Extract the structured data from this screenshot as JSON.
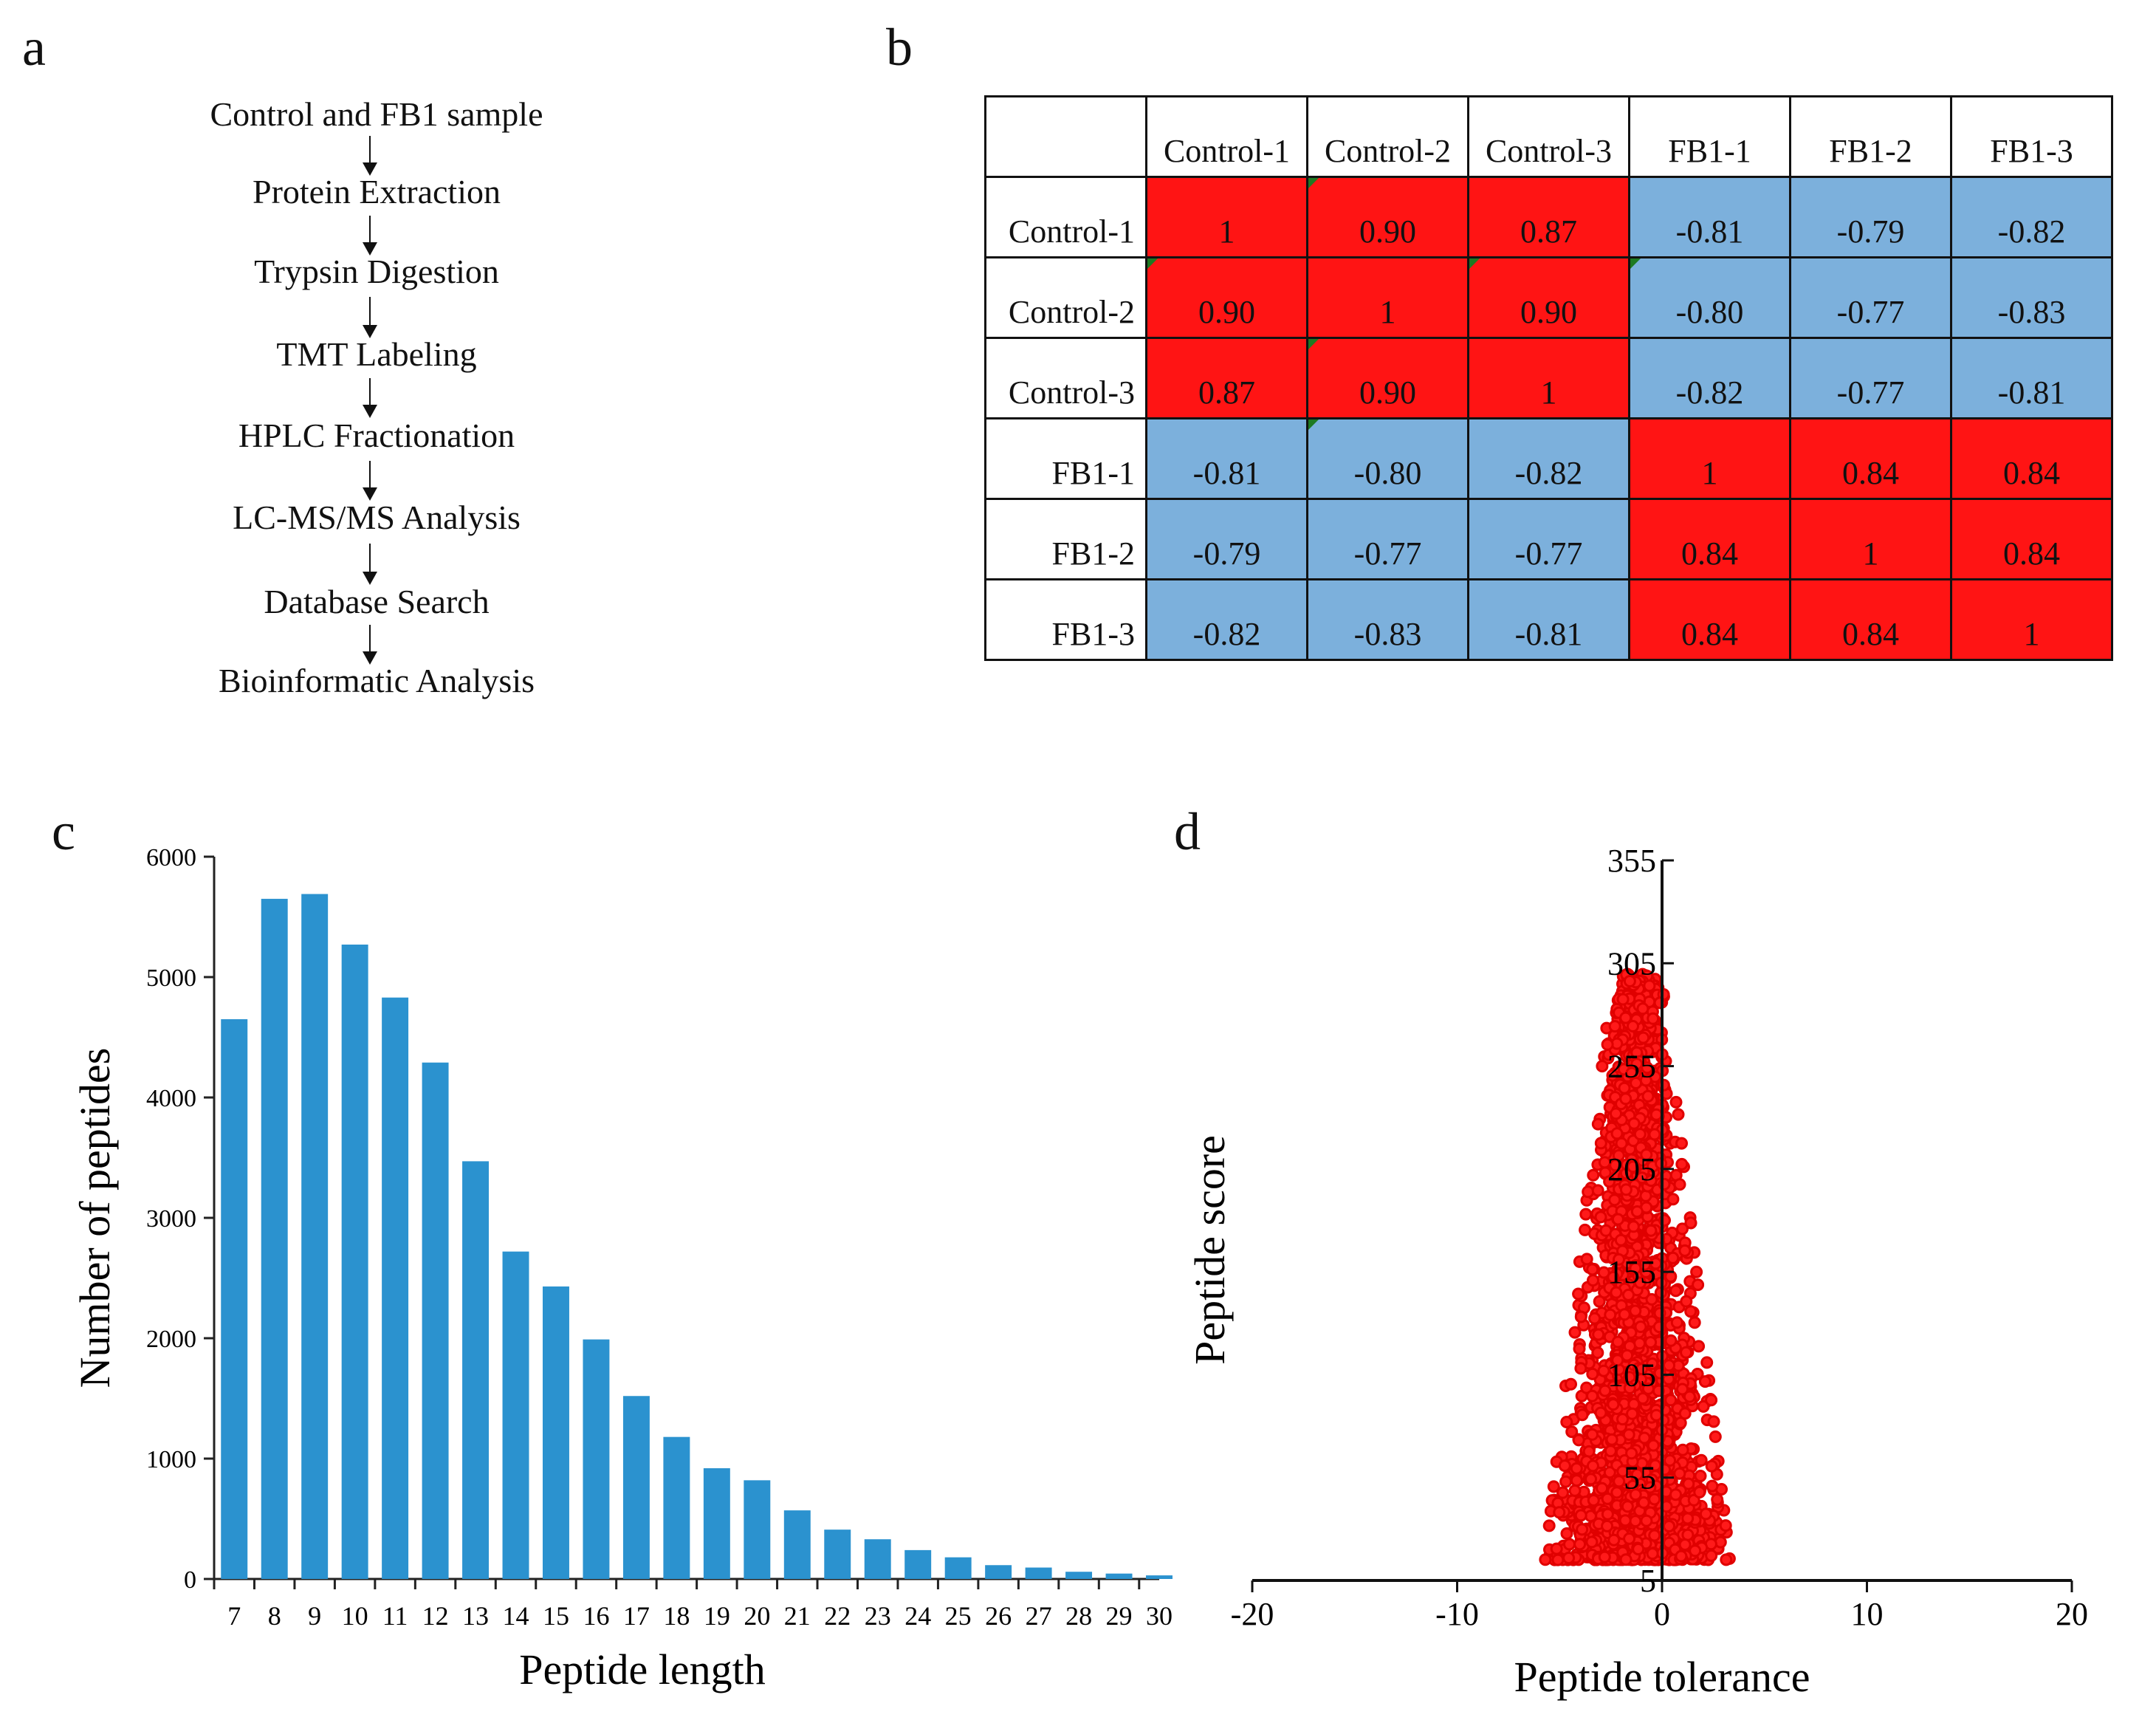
{
  "panels": {
    "a": "a",
    "b": "b",
    "c": "c",
    "d": "d"
  },
  "workflow": {
    "steps": [
      "Control and FB1 sample",
      "Protein Extraction",
      "Trypsin Digestion",
      "TMT Labeling",
      "HPLC Fractionation",
      "LC-MS/MS Analysis",
      "Database Search",
      "Bioinformatic Analysis"
    ]
  },
  "correlation": {
    "columns": [
      "Control-1",
      "Control-2",
      "Control-3",
      "FB1-1",
      "FB1-2",
      "FB1-3"
    ],
    "rows": [
      {
        "label": "Control-1",
        "values": [
          "1",
          "0.90",
          "0.87",
          "-0.81",
          "-0.79",
          "-0.82"
        ]
      },
      {
        "label": "Control-2",
        "values": [
          "0.90",
          "1",
          "0.90",
          "-0.80",
          "-0.77",
          "-0.83"
        ]
      },
      {
        "label": "Control-3",
        "values": [
          "0.87",
          "0.90",
          "1",
          "-0.82",
          "-0.77",
          "-0.81"
        ]
      },
      {
        "label": "FB1-1",
        "values": [
          "-0.81",
          "-0.80",
          "-0.82",
          "1",
          "0.84",
          "0.84"
        ]
      },
      {
        "label": "FB1-2",
        "values": [
          "-0.79",
          "-0.77",
          "-0.77",
          "0.84",
          "1",
          "0.84"
        ]
      },
      {
        "label": "FB1-3",
        "values": [
          "-0.82",
          "-0.83",
          "-0.81",
          "0.84",
          "0.84",
          "1"
        ]
      }
    ],
    "colors": {
      "positive": "#ff1414",
      "negative": "#7cb0dc"
    }
  },
  "chart_data": [
    {
      "type": "bar",
      "title": "",
      "xlabel": "Peptide length",
      "ylabel": "Number of peptides",
      "categories": [
        "7",
        "8",
        "9",
        "10",
        "11",
        "12",
        "13",
        "14",
        "15",
        "16",
        "17",
        "18",
        "19",
        "20",
        "21",
        "22",
        "23",
        "24",
        "25",
        "26",
        "27",
        "28",
        "29",
        "30"
      ],
      "values": [
        4650,
        5650,
        5690,
        5270,
        4830,
        4290,
        3470,
        2720,
        2430,
        1990,
        1520,
        1180,
        920,
        820,
        570,
        410,
        330,
        240,
        180,
        115,
        95,
        60,
        45,
        30
      ],
      "ylim": [
        0,
        6000
      ],
      "yticks": [
        "0",
        "1000",
        "2000",
        "3000",
        "4000",
        "5000",
        "6000"
      ],
      "color": "#2b92cf"
    },
    {
      "type": "scatter",
      "title": "",
      "xlabel": "Peptide tolerance",
      "ylabel": "Peptide score",
      "xlim": [
        -20,
        20
      ],
      "ylim": [
        5,
        355
      ],
      "xticks": [
        "-20",
        "-10",
        "0",
        "10",
        "20"
      ],
      "yticks": [
        "5",
        "55",
        "105",
        "155",
        "205",
        "255",
        "305",
        "355"
      ],
      "color": "#ff1a1a",
      "distribution": {
        "x_center": -1.2,
        "x_spread_min": 1.2,
        "x_spread_max": 4.5,
        "score_min": 15,
        "score_max": 300
      }
    }
  ]
}
